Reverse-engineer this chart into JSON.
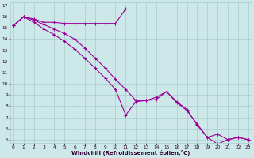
{
  "xlabel": "Windchill (Refroidissement éolien,°C)",
  "color": "#990099",
  "bg_color": "#cce8e8",
  "grid_color": "#aacccc",
  "yticks": [
    5,
    6,
    7,
    8,
    9,
    10,
    11,
    12,
    13,
    14,
    15,
    16,
    17
  ],
  "xticks": [
    0,
    1,
    2,
    3,
    4,
    5,
    6,
    7,
    8,
    9,
    10,
    11,
    12,
    13,
    14,
    15,
    16,
    17,
    18,
    19,
    20,
    21,
    22,
    23
  ],
  "line1_x": [
    0,
    1,
    2,
    3,
    4,
    5,
    6,
    7,
    8,
    9,
    10,
    11
  ],
  "line1_y": [
    15.2,
    16.0,
    15.8,
    15.5,
    15.5,
    15.4,
    15.4,
    15.4,
    15.4,
    15.4,
    15.4,
    16.7
  ],
  "line2_x": [
    0,
    1,
    2,
    3,
    4,
    5,
    6,
    7,
    8,
    9,
    10,
    11,
    12,
    13,
    14,
    15,
    16,
    17,
    18,
    19,
    20,
    21,
    22,
    23
  ],
  "line2_y": [
    15.2,
    16.0,
    15.7,
    15.3,
    14.9,
    14.5,
    14.0,
    13.2,
    12.3,
    11.4,
    10.4,
    9.5,
    8.5,
    8.5,
    8.6,
    9.3,
    8.4,
    7.7,
    6.3,
    5.2,
    4.6,
    5.0,
    5.2,
    5.0
  ],
  "line3_x": [
    0,
    1,
    2,
    3,
    4,
    5,
    6,
    7,
    8,
    9,
    10,
    11,
    12,
    13,
    14,
    15,
    16,
    17,
    18,
    19,
    20,
    21,
    22,
    23
  ],
  "line3_y": [
    15.2,
    16.0,
    15.5,
    14.9,
    14.4,
    13.8,
    13.1,
    12.3,
    11.4,
    10.5,
    9.5,
    7.2,
    8.4,
    8.5,
    8.8,
    9.3,
    8.3,
    7.6,
    6.4,
    5.2,
    5.5,
    5.0,
    5.2,
    5.0
  ]
}
